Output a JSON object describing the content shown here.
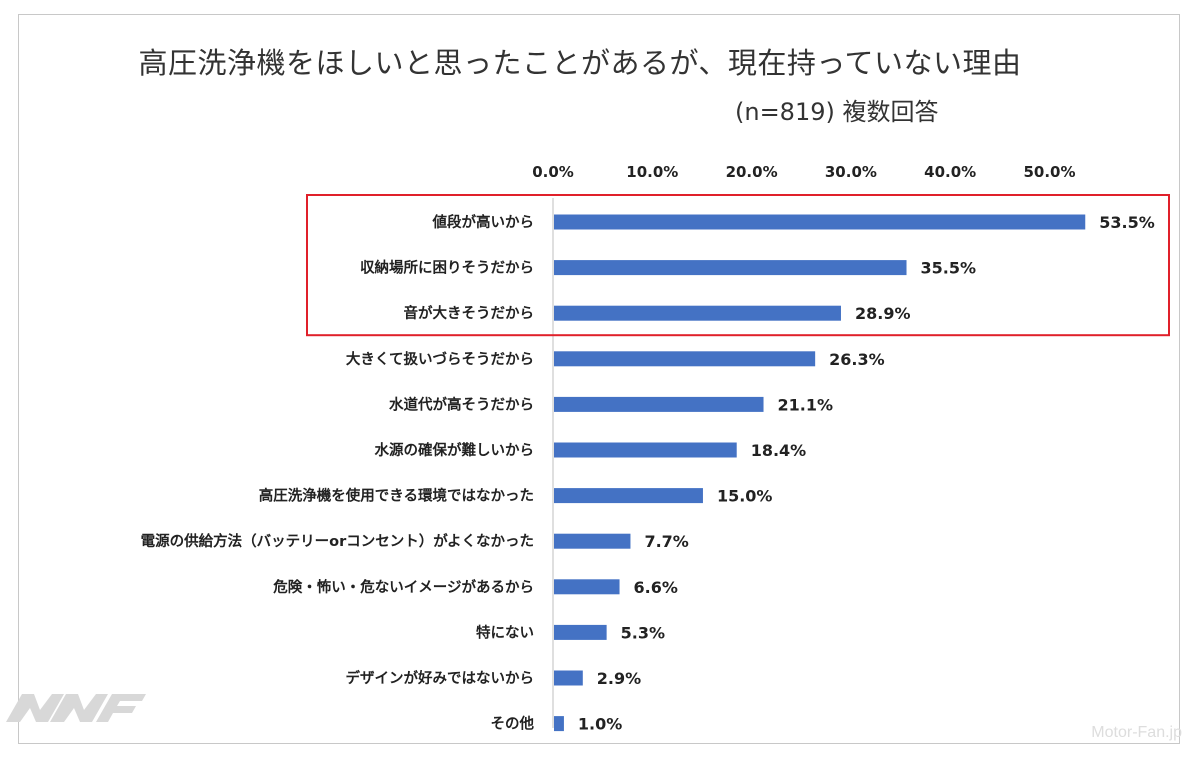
{
  "title": "高圧洗浄機をほしいと思ったことがあるが、現在持っていない理由",
  "subtitle": "(n=819) 複数回答",
  "watermark": "Motor-Fan.jp",
  "chart_data": {
    "type": "bar",
    "orientation": "horizontal",
    "title": "高圧洗浄機をほしいと思ったことがあるが、現在持っていない理由",
    "subtitle": "(n=819) 複数回答",
    "xlim": [
      0,
      55
    ],
    "ticks": [
      "0.0%",
      "10.0%",
      "20.0%",
      "30.0%",
      "40.0%",
      "50.0%"
    ],
    "tick_values": [
      0,
      10,
      20,
      30,
      40,
      50
    ],
    "categories": [
      "値段が高いから",
      "収納場所に困りそうだから",
      "音が大きそうだから",
      "大きくて扱いづらそうだから",
      "水道代が高そうだから",
      "水源の確保が難しいから",
      "高圧洗浄機を使用できる環境ではなかった",
      "電源の供給方法（バッテリーorコンセント）がよくなかった",
      "危険・怖い・危ないイメージがあるから",
      "特にない",
      "デザインが好みではないから",
      "その他"
    ],
    "values": [
      53.5,
      35.5,
      28.9,
      26.3,
      21.1,
      18.4,
      15.0,
      7.7,
      6.6,
      5.3,
      2.9,
      1.0
    ],
    "value_labels": [
      "53.5%",
      "35.5%",
      "28.9%",
      "26.3%",
      "21.1%",
      "18.4%",
      "15.0%",
      "7.7%",
      "6.6%",
      "5.3%",
      "2.9%",
      "1.0%"
    ],
    "highlight_top": 3,
    "bar_color": "#4472c4",
    "highlight_color": "#e0202a"
  }
}
